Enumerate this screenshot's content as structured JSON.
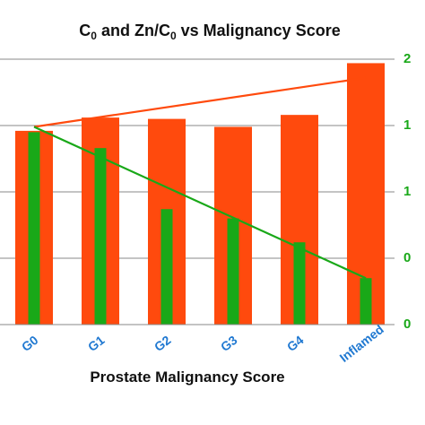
{
  "chart_data": {
    "type": "bar",
    "title": {
      "parts": [
        "C",
        "0",
        " and Zn/C",
        "0",
        " vs Malignancy Score"
      ],
      "subscript_parts": [
        1,
        3
      ]
    },
    "xlabel": "Prostate Malignancy Score",
    "categories": [
      "G0",
      "G1",
      "G2",
      "G3",
      "G4",
      "Inflamed"
    ],
    "left_axis": {
      "ylim": [
        0,
        2.0
      ],
      "gridlines": [
        0.5,
        1.0,
        1.5,
        2.0
      ],
      "tick_labels_visible": false
    },
    "right_axis": {
      "ylim": [
        0,
        2.0
      ],
      "tick_labels": [
        "0",
        "0",
        "1",
        "1",
        "2"
      ],
      "tick_values": [
        0,
        0.5,
        1.0,
        1.5,
        2.0
      ],
      "color": "#19a818"
    },
    "series": [
      {
        "key": "c0",
        "axis": "left",
        "values": [
          1.46,
          1.56,
          1.55,
          1.49,
          1.58,
          1.97
        ],
        "color": "#ff4a0d"
      },
      {
        "key": "zn_c0",
        "axis": "right",
        "values": [
          1.45,
          1.33,
          0.87,
          0.8,
          0.62,
          0.35
        ],
        "color": "#19a818"
      }
    ],
    "trendlines": [
      {
        "series": "c0",
        "from": [
          0,
          1.49
        ],
        "to": [
          5,
          1.86
        ],
        "color": "#ff4a0d"
      },
      {
        "series": "zn_c0",
        "from": [
          0,
          1.49
        ],
        "to": [
          5,
          0.35
        ],
        "color": "#19a818"
      }
    ],
    "tick_label_color": "#1f78d1",
    "grid": true,
    "legend": "none"
  }
}
